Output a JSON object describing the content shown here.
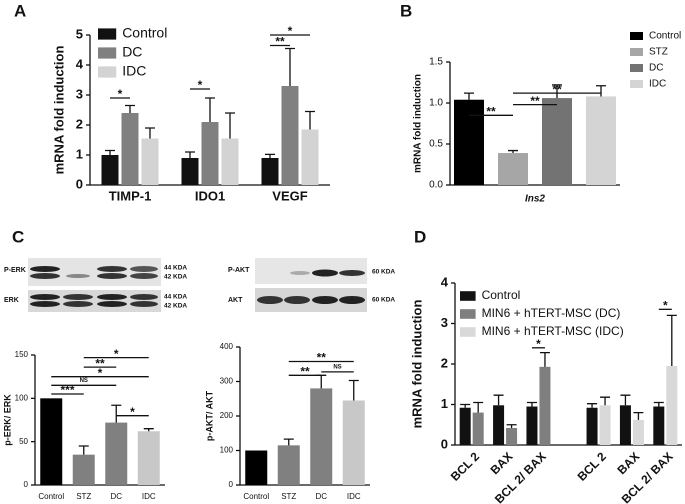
{
  "chart_data": [
    {
      "type": "bar",
      "panel": "A",
      "ylabel": "mRNA fold induction",
      "categories": [
        "TIMP-1",
        "IDO1",
        "VEGF"
      ],
      "series": [
        {
          "name": "Control",
          "color": "#111111",
          "values": [
            1.0,
            0.9,
            0.9
          ],
          "errors": [
            0.15,
            0.2,
            0.12
          ]
        },
        {
          "name": "DC",
          "color": "#808080",
          "values": [
            2.4,
            2.1,
            3.3
          ],
          "errors": [
            0.25,
            0.8,
            1.25
          ]
        },
        {
          "name": "IDC",
          "color": "#d3d3d3",
          "values": [
            1.55,
            1.55,
            1.85
          ],
          "errors": [
            0.35,
            0.85,
            0.6
          ]
        }
      ],
      "ylim": [
        0,
        5
      ],
      "yticks": [
        0,
        1,
        2,
        3,
        4,
        5
      ],
      "legend": "upper left",
      "annotations": [
        {
          "text": "*",
          "y": 2.9,
          "between": [
            [
              0,
              0
            ],
            [
              1,
              0
            ]
          ]
        },
        {
          "text": "*",
          "y": 3.2,
          "between": [
            [
              0,
              1
            ],
            [
              1,
              1
            ]
          ]
        },
        {
          "text": "**",
          "y": 4.65,
          "between": [
            [
              0,
              2
            ],
            [
              1,
              2
            ]
          ]
        },
        {
          "text": "*",
          "y": 5.0,
          "between": [
            [
              0,
              2
            ],
            [
              2,
              2
            ]
          ]
        }
      ]
    },
    {
      "type": "bar",
      "panel": "B",
      "ylabel": "mRNA fold induction",
      "categories": [
        "Ins2"
      ],
      "series": [
        {
          "name": "Control",
          "color": "#000000",
          "values": [
            1.04
          ],
          "errors": [
            0.08
          ]
        },
        {
          "name": "STZ",
          "color": "#a6a6a6",
          "values": [
            0.39
          ],
          "errors": [
            0.03
          ]
        },
        {
          "name": "DC",
          "color": "#737373",
          "values": [
            1.06
          ],
          "errors": [
            0.16
          ]
        },
        {
          "name": "IDC",
          "color": "#d4d4d4",
          "values": [
            1.08
          ],
          "errors": [
            0.13
          ]
        }
      ],
      "ylim": [
        0,
        1.5
      ],
      "yticks": [
        {
          "value": 0,
          "label": "0.0"
        },
        0.5,
        {
          "value": 1,
          "label": "1.0"
        },
        1.5
      ],
      "legend": "right",
      "annotations": [
        {
          "text": "**",
          "y": 0.85,
          "between": [
            [
              0,
              0
            ],
            [
              1,
              0
            ]
          ]
        },
        {
          "text": "**",
          "y": 0.98,
          "between": [
            [
              1,
              0
            ],
            [
              2,
              0
            ]
          ]
        },
        {
          "text": "**",
          "y": 1.12,
          "between": [
            [
              1,
              0
            ],
            [
              3,
              0
            ]
          ]
        }
      ]
    },
    {
      "type": "bar",
      "panel": "C",
      "ylabel": "p-ERK/ ERK",
      "categories": [
        "Control",
        "STZ",
        "DC",
        "IDC"
      ],
      "values": [
        100,
        35,
        72,
        62
      ],
      "errors": [
        null,
        10,
        20,
        3
      ],
      "colors": [
        "#000000",
        "#808080",
        "#808080",
        "#c8c8c8"
      ],
      "ylim": [
        0,
        150
      ],
      "yticks": [
        0,
        50,
        100,
        150
      ],
      "annotations": [
        {
          "text": "***",
          "y": 105,
          "between": [
            0,
            1
          ]
        },
        {
          "text": "NS",
          "y": 115,
          "between": [
            0,
            2
          ]
        },
        {
          "text": "*",
          "y": 125,
          "between": [
            0,
            3
          ]
        },
        {
          "text": "**",
          "y": 136,
          "between": [
            1,
            2
          ]
        },
        {
          "text": "*",
          "y": 147,
          "between": [
            1,
            3
          ]
        },
        {
          "text": "*",
          "y": 80,
          "between": [
            2,
            3
          ]
        }
      ]
    },
    {
      "type": "bar",
      "ylabel": "p-AKT/ AKT",
      "categories": [
        "Control",
        "STZ",
        "DC",
        "IDC"
      ],
      "values": [
        100,
        115,
        280,
        245
      ],
      "errors": [
        null,
        18,
        38,
        58
      ],
      "colors": [
        "#000000",
        "#808080",
        "#808080",
        "#c8c8c8"
      ],
      "ylim": [
        0,
        400
      ],
      "yticks": [
        0,
        100,
        200,
        300,
        400
      ],
      "annotations": [
        {
          "text": "**",
          "y": 318,
          "between": [
            1,
            2
          ]
        },
        {
          "text": "**",
          "y": 358,
          "between": [
            1,
            3
          ]
        },
        {
          "text": "NS",
          "y": 328,
          "between": [
            2,
            3
          ]
        }
      ]
    },
    {
      "type": "bar",
      "panel": "D",
      "ylabel": "mRNA fold induction",
      "categories": [
        "BCL 2",
        "BAX",
        "BCL 2/ BAX",
        "BCL 2",
        "BAX",
        "BCL 2/ BAX"
      ],
      "series": [
        {
          "name": "Control",
          "color": "#111111",
          "values": [
            0.92,
            0.98,
            0.95,
            0.92,
            0.98,
            0.95
          ],
          "errors": [
            0.08,
            0.25,
            0.1,
            0.1,
            0.25,
            0.1
          ]
        },
        {
          "name": "MIN6 + hTERT-MSC (DC)",
          "color": "#7f7f7f",
          "values": [
            0.8,
            0.42,
            1.93,
            null,
            null,
            null
          ],
          "errors": [
            0.25,
            0.08,
            0.35,
            null,
            null,
            null
          ]
        },
        {
          "name": "MIN6 + hTERT-MSC (IDC)",
          "color": "#d9d9d9",
          "values": [
            null,
            null,
            null,
            0.98,
            0.62,
            1.95
          ],
          "errors": [
            null,
            null,
            null,
            0.2,
            0.18,
            1.25
          ]
        }
      ],
      "ylim": [
        0,
        4
      ],
      "yticks": [
        0,
        1,
        2,
        3,
        4
      ],
      "legend": "upper left",
      "annotations": [
        {
          "text": "*",
          "y": 2.4,
          "between": [
            [
              0,
              2
            ],
            [
              1,
              2
            ]
          ]
        },
        {
          "text": "*",
          "y": 3.35,
          "between": [
            [
              0,
              5
            ],
            [
              2,
              5
            ]
          ]
        }
      ]
    }
  ],
  "blots": {
    "left": [
      {
        "name": "P-ERK",
        "kda": [
          "44 KDA",
          "42 KDA"
        ]
      },
      {
        "name": "ERK",
        "kda": [
          "44 KDA",
          "42 KDA"
        ]
      }
    ],
    "right": [
      {
        "name": "P-AKT",
        "kda": [
          "60 KDA"
        ]
      },
      {
        "name": "AKT",
        "kda": [
          "60 KDA"
        ]
      }
    ]
  }
}
